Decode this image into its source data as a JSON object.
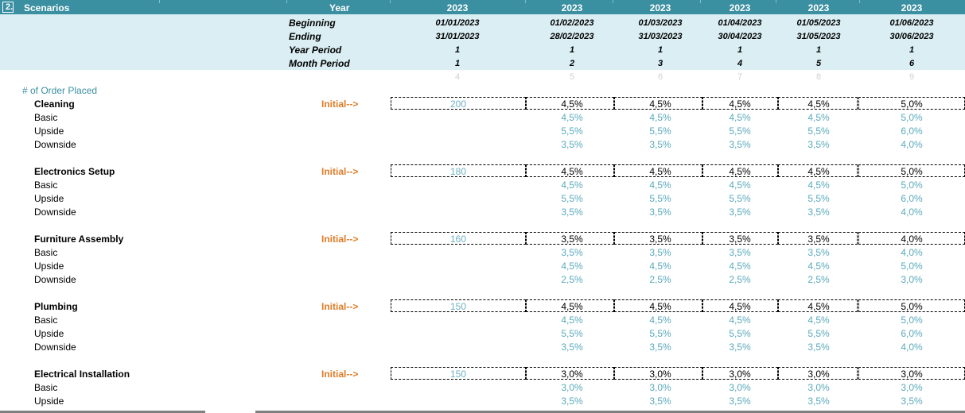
{
  "header": {
    "section_number": "2.",
    "section_title": "Scenarios",
    "year_label": "Year",
    "years": [
      "2023",
      "2023",
      "2023",
      "2023",
      "2023",
      "2023"
    ]
  },
  "meta": {
    "beginning_label": "Beginning",
    "ending_label": "Ending",
    "year_period_label": "Year Period",
    "month_period_label": "Month Period",
    "beginning": [
      "01/01/2023",
      "01/02/2023",
      "01/03/2023",
      "01/04/2023",
      "01/05/2023",
      "01/06/2023"
    ],
    "ending": [
      "31/01/2023",
      "28/02/2023",
      "31/03/2023",
      "30/04/2023",
      "31/05/2023",
      "30/06/2023"
    ],
    "year_period": [
      "1",
      "1",
      "1",
      "1",
      "1",
      "1"
    ],
    "month_period": [
      "1",
      "2",
      "3",
      "4",
      "5",
      "6"
    ],
    "column_index": [
      "4",
      "5",
      "6",
      "7",
      "8",
      "9"
    ]
  },
  "section_label": "# of Order Placed",
  "initial_label": "Initial-->",
  "scenario_labels": [
    "Basic",
    "Upside",
    "Downside"
  ],
  "services": [
    {
      "name": "Cleaning",
      "initial": "200",
      "current": [
        "4,5%",
        "4,5%",
        "4,5%",
        "4,5%",
        "5,0%"
      ],
      "basic": [
        "4,5%",
        "4,5%",
        "4,5%",
        "4,5%",
        "5,0%"
      ],
      "upside": [
        "5,5%",
        "5,5%",
        "5,5%",
        "5,5%",
        "6,0%"
      ],
      "downside": [
        "3,5%",
        "3,5%",
        "3,5%",
        "3,5%",
        "4,0%"
      ]
    },
    {
      "name": "Electronics Setup",
      "initial": "180",
      "current": [
        "4,5%",
        "4,5%",
        "4,5%",
        "4,5%",
        "5,0%"
      ],
      "basic": [
        "4,5%",
        "4,5%",
        "4,5%",
        "4,5%",
        "5,0%"
      ],
      "upside": [
        "5,5%",
        "5,5%",
        "5,5%",
        "5,5%",
        "6,0%"
      ],
      "downside": [
        "3,5%",
        "3,5%",
        "3,5%",
        "3,5%",
        "4,0%"
      ]
    },
    {
      "name": "Furniture Assembly",
      "initial": "160",
      "current": [
        "3,5%",
        "3,5%",
        "3,5%",
        "3,5%",
        "4,0%"
      ],
      "basic": [
        "3,5%",
        "3,5%",
        "3,5%",
        "3,5%",
        "4,0%"
      ],
      "upside": [
        "4,5%",
        "4,5%",
        "4,5%",
        "4,5%",
        "5,0%"
      ],
      "downside": [
        "2,5%",
        "2,5%",
        "2,5%",
        "2,5%",
        "3,0%"
      ]
    },
    {
      "name": "Plumbing",
      "initial": "150",
      "current": [
        "4,5%",
        "4,5%",
        "4,5%",
        "4,5%",
        "5,0%"
      ],
      "basic": [
        "4,5%",
        "4,5%",
        "4,5%",
        "4,5%",
        "5,0%"
      ],
      "upside": [
        "5,5%",
        "5,5%",
        "5,5%",
        "5,5%",
        "6,0%"
      ],
      "downside": [
        "3,5%",
        "3,5%",
        "3,5%",
        "3,5%",
        "4,0%"
      ]
    },
    {
      "name": "Electrical Installation",
      "initial": "150",
      "current": [
        "3,0%",
        "3,0%",
        "3,0%",
        "3,0%",
        "3,0%"
      ],
      "basic": [
        "3,0%",
        "3,0%",
        "3,0%",
        "3,0%",
        "3,0%"
      ],
      "upside": [
        "3,5%",
        "3,5%",
        "3,5%",
        "3,5%",
        "3,5%"
      ],
      "downside": []
    }
  ]
}
